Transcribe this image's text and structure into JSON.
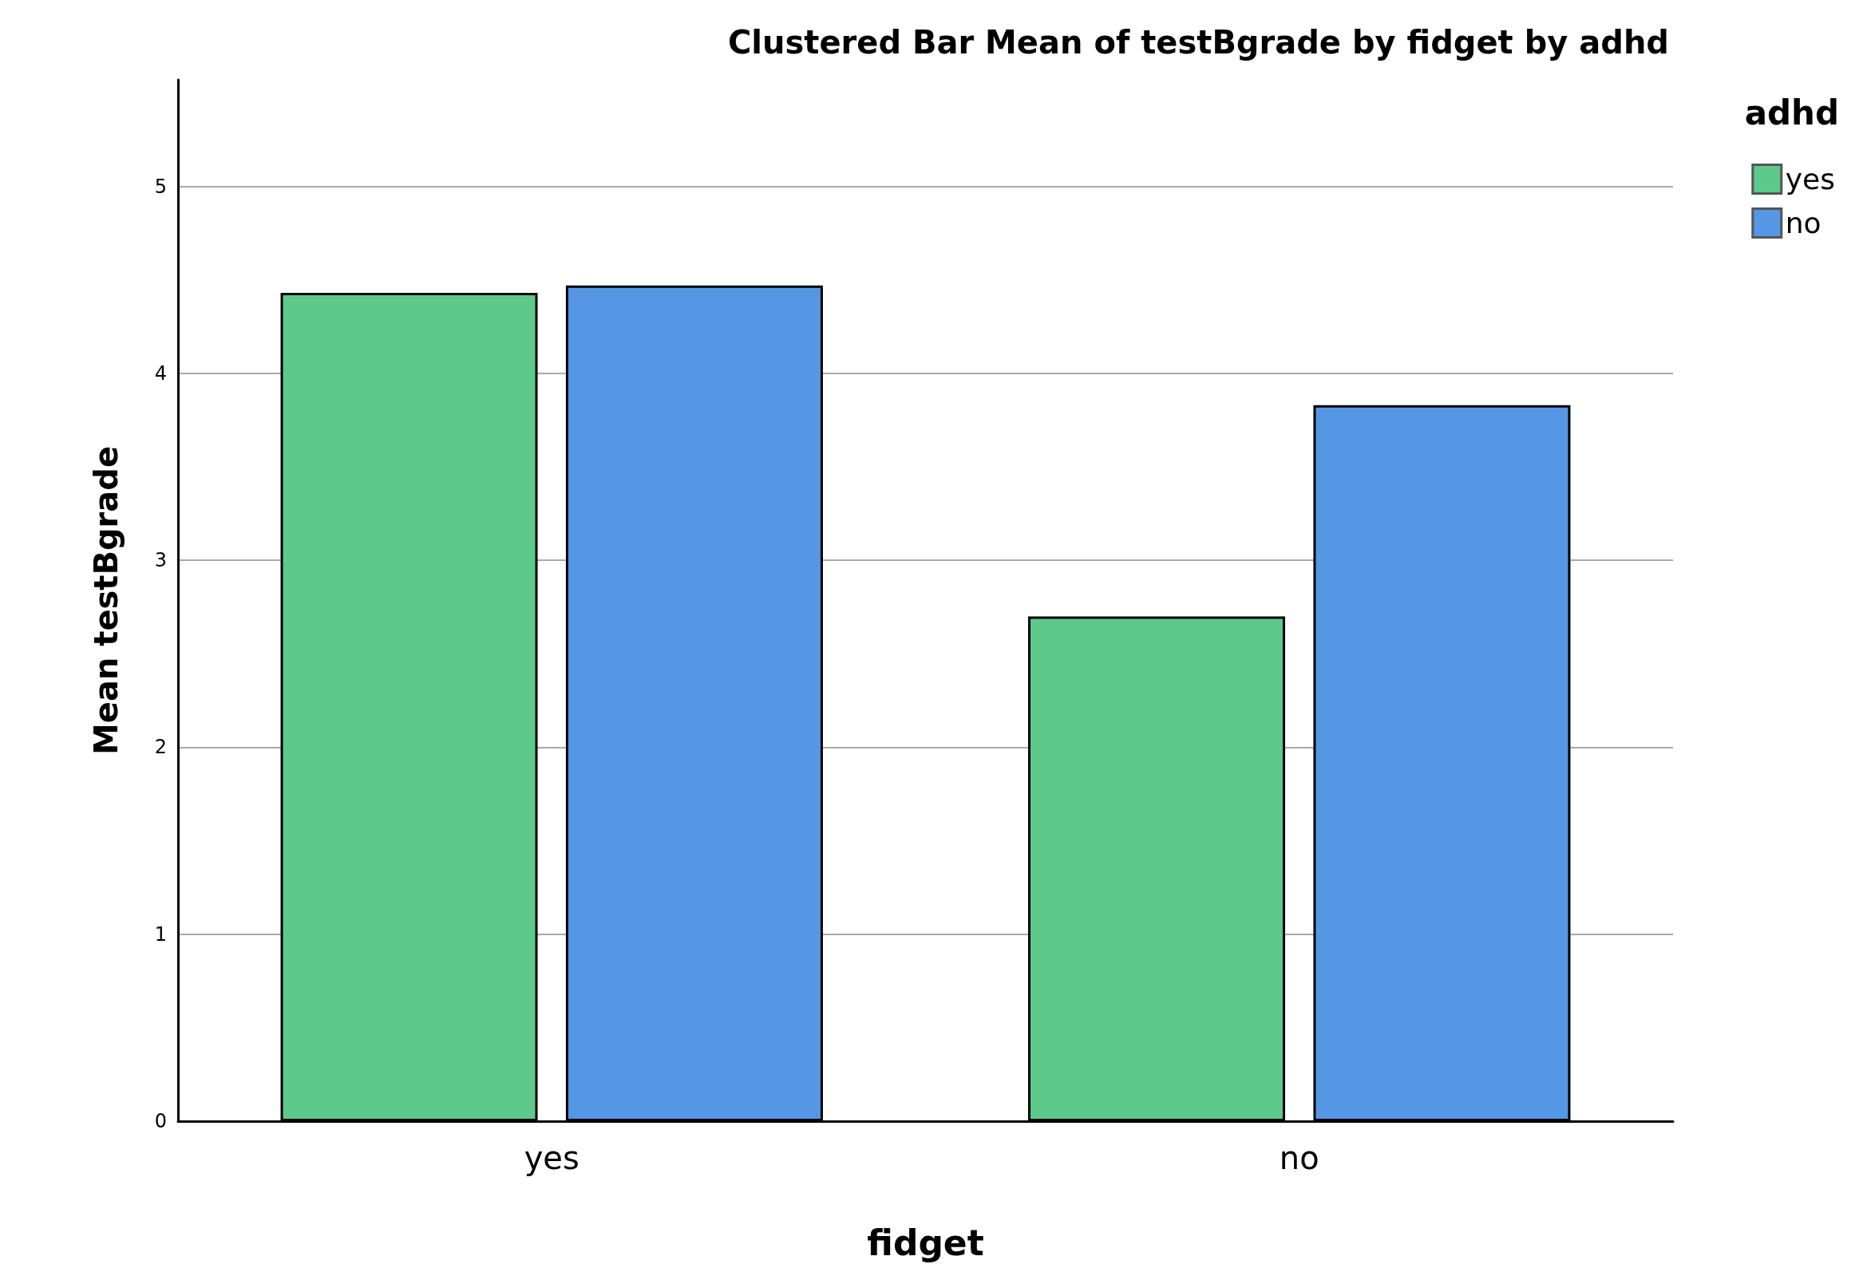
{
  "chart_data": {
    "type": "bar",
    "title": "Clustered Bar Mean of testBgrade by fidget by adhd",
    "xlabel": "fidget",
    "ylabel": "Mean testBgrade",
    "legend_title": "adhd",
    "categories": [
      "yes",
      "no"
    ],
    "series": [
      {
        "name": "yes",
        "color": "#5dc98b",
        "values": [
          4.43,
          2.7
        ]
      },
      {
        "name": "no",
        "color": "#5597e4",
        "values": [
          4.47,
          3.83
        ]
      }
    ],
    "ylim": [
      0,
      5.57
    ],
    "yticks": [
      0,
      1,
      2,
      3,
      4,
      5
    ],
    "grid": "y",
    "legend": "top right"
  }
}
